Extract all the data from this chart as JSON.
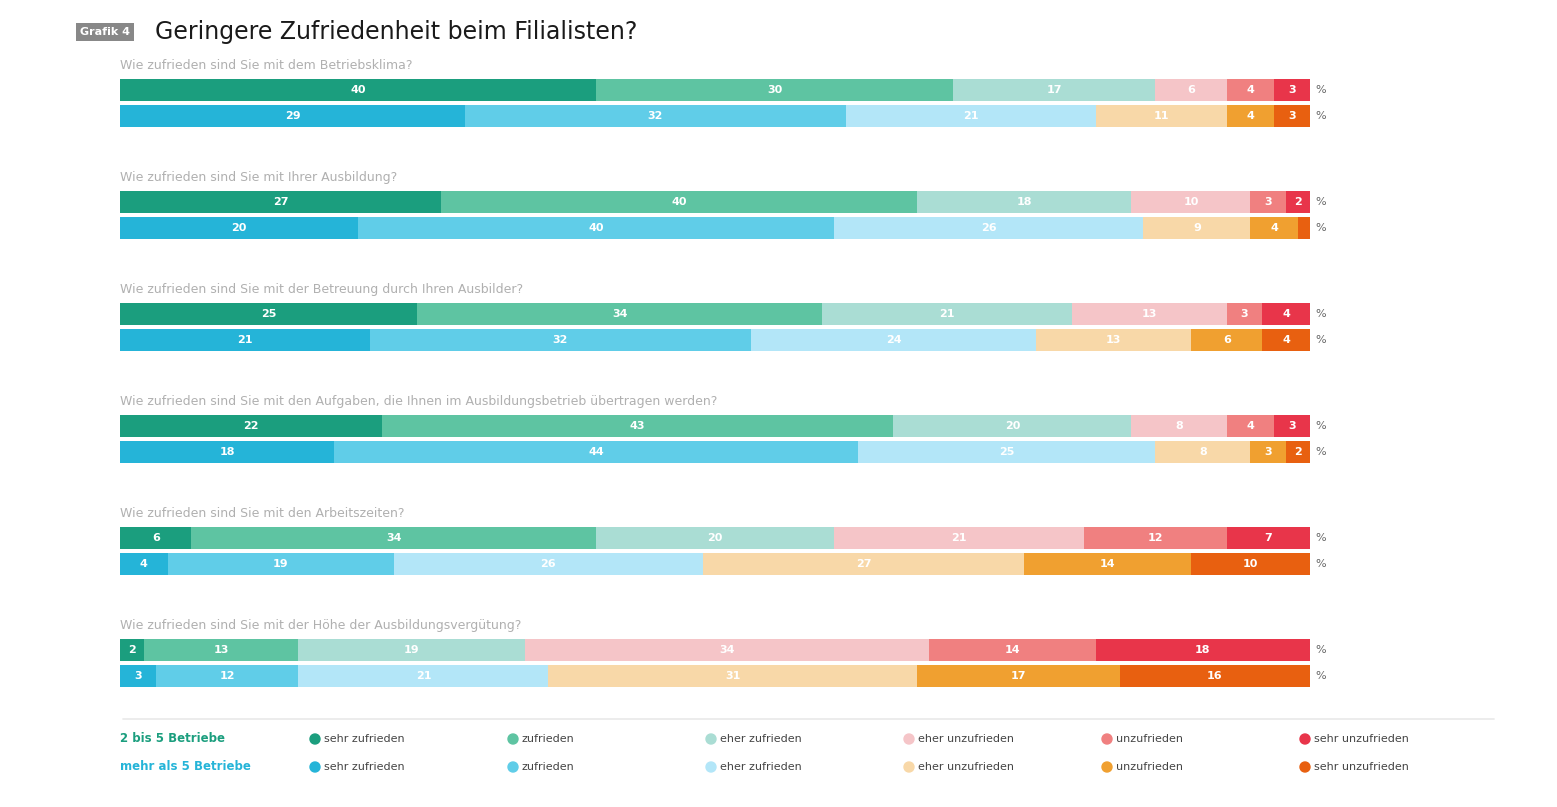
{
  "title": "Geringere Zufriedenheit beim Filialisten?",
  "grafik_label": "Grafik 4",
  "questions": [
    "Wie zufrieden sind Sie mit dem Betriebsklima?",
    "Wie zufrieden sind Sie mit Ihrer Ausbildung?",
    "Wie zufrieden sind Sie mit der Betreuung durch Ihren Ausbilder?",
    "Wie zufrieden sind Sie mit den Aufgaben, die Ihnen im Ausbildungsbetrieb übertragen werden?",
    "Wie zufrieden sind Sie mit den Arbeitszeiten?",
    "Wie zufrieden sind Sie mit der Höhe der Ausbildungsvergütung?"
  ],
  "data_group1": [
    [
      40,
      30,
      17,
      6,
      4,
      3
    ],
    [
      27,
      40,
      18,
      10,
      3,
      2
    ],
    [
      25,
      34,
      21,
      13,
      3,
      4
    ],
    [
      22,
      43,
      20,
      8,
      4,
      3
    ],
    [
      6,
      34,
      20,
      21,
      12,
      7
    ],
    [
      2,
      13,
      19,
      34,
      14,
      18
    ]
  ],
  "data_group2": [
    [
      29,
      32,
      21,
      11,
      4,
      3
    ],
    [
      20,
      40,
      26,
      9,
      4,
      1
    ],
    [
      21,
      32,
      24,
      13,
      6,
      4
    ],
    [
      18,
      44,
      25,
      8,
      3,
      2
    ],
    [
      4,
      19,
      26,
      27,
      14,
      10
    ],
    [
      3,
      12,
      21,
      31,
      17,
      16
    ]
  ],
  "colors_group1": [
    "#1b9e7e",
    "#5ec4a2",
    "#aaddd4",
    "#f5c5c8",
    "#f08080",
    "#e8354a"
  ],
  "colors_group2": [
    "#25b4d8",
    "#60cde8",
    "#b3e6f8",
    "#f8d8a8",
    "#f0a030",
    "#e86010"
  ],
  "background_color": "#ffffff",
  "legend_group1_label": "2 bis 5 Betriebe",
  "legend_group2_label": "mehr als 5 Betriebe",
  "legend_items": [
    "sehr zufrieden",
    "zufrieden",
    "eher zufrieden",
    "eher unzufrieden",
    "unzufrieden",
    "sehr unzufrieden"
  ]
}
